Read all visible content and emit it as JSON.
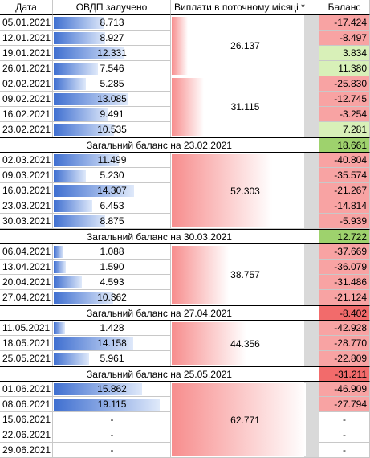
{
  "table": {
    "header": [
      "Дата",
      "ОВДП залучено",
      "Виплати в поточному місяці *",
      "Баланс"
    ],
    "groups": [
      {
        "rows": [
          [
            "05.01.2021",
            "8.713",
            "-17.424"
          ],
          [
            "12.01.2021",
            "8.927",
            "-8.497"
          ],
          [
            "19.01.2021",
            "12.331",
            "3.834"
          ],
          [
            "26.01.2021",
            "7.546",
            "11.380"
          ]
        ],
        "payment": "26.137"
      },
      {
        "rows": [
          [
            "02.02.2021",
            "5.285",
            "-25.830"
          ],
          [
            "09.02.2021",
            "13.085",
            "-12.745"
          ],
          [
            "16.02.2021",
            "9.491",
            "-3.254"
          ],
          [
            "23.02.2021",
            "10.535",
            "7.281"
          ]
        ],
        "payment": "31.115",
        "summary": {
          "label": "Загальний баланс на 23.02.2021",
          "balance": "18.661"
        }
      },
      {
        "rows": [
          [
            "02.03.2021",
            "11.499",
            "-40.804"
          ],
          [
            "09.03.2021",
            "5.230",
            "-35.574"
          ],
          [
            "16.03.2021",
            "14.307",
            "-21.267"
          ],
          [
            "23.03.2021",
            "6.453",
            "-14.814"
          ],
          [
            "30.03.2021",
            "8.875",
            "-5.939"
          ]
        ],
        "payment": "52.303",
        "summary": {
          "label": "Загальний баланс на 30.03.2021",
          "balance": "12.722"
        }
      },
      {
        "rows": [
          [
            "06.04.2021",
            "1.088",
            "-37.669"
          ],
          [
            "13.04.2021",
            "1.590",
            "-36.079"
          ],
          [
            "20.04.2021",
            "4.593",
            "-31.486"
          ],
          [
            "27.04.2021",
            "10.362",
            "-21.124"
          ]
        ],
        "payment": "38.757",
        "summary": {
          "label": "Загальний баланс на 27.04.2021",
          "balance": "-8.402"
        }
      },
      {
        "rows": [
          [
            "11.05.2021",
            "1.428",
            "-42.928"
          ],
          [
            "18.05.2021",
            "14.158",
            "-28.770"
          ],
          [
            "25.05.2021",
            "5.961",
            "-22.809"
          ]
        ],
        "payment": "44.356",
        "summary": {
          "label": "Загальний баланс на 25.05.2021",
          "balance": "-31.211"
        }
      },
      {
        "rows": [
          [
            "01.06.2021",
            "15.862",
            "-46.909"
          ],
          [
            "08.06.2021",
            "19.115",
            "-27.794"
          ],
          [
            "15.06.2021",
            "-",
            "-"
          ],
          [
            "22.06.2021",
            "-",
            "-"
          ],
          [
            "29.06.2021",
            "-",
            "-"
          ]
        ],
        "payment": "62.771"
      }
    ]
  }
}
